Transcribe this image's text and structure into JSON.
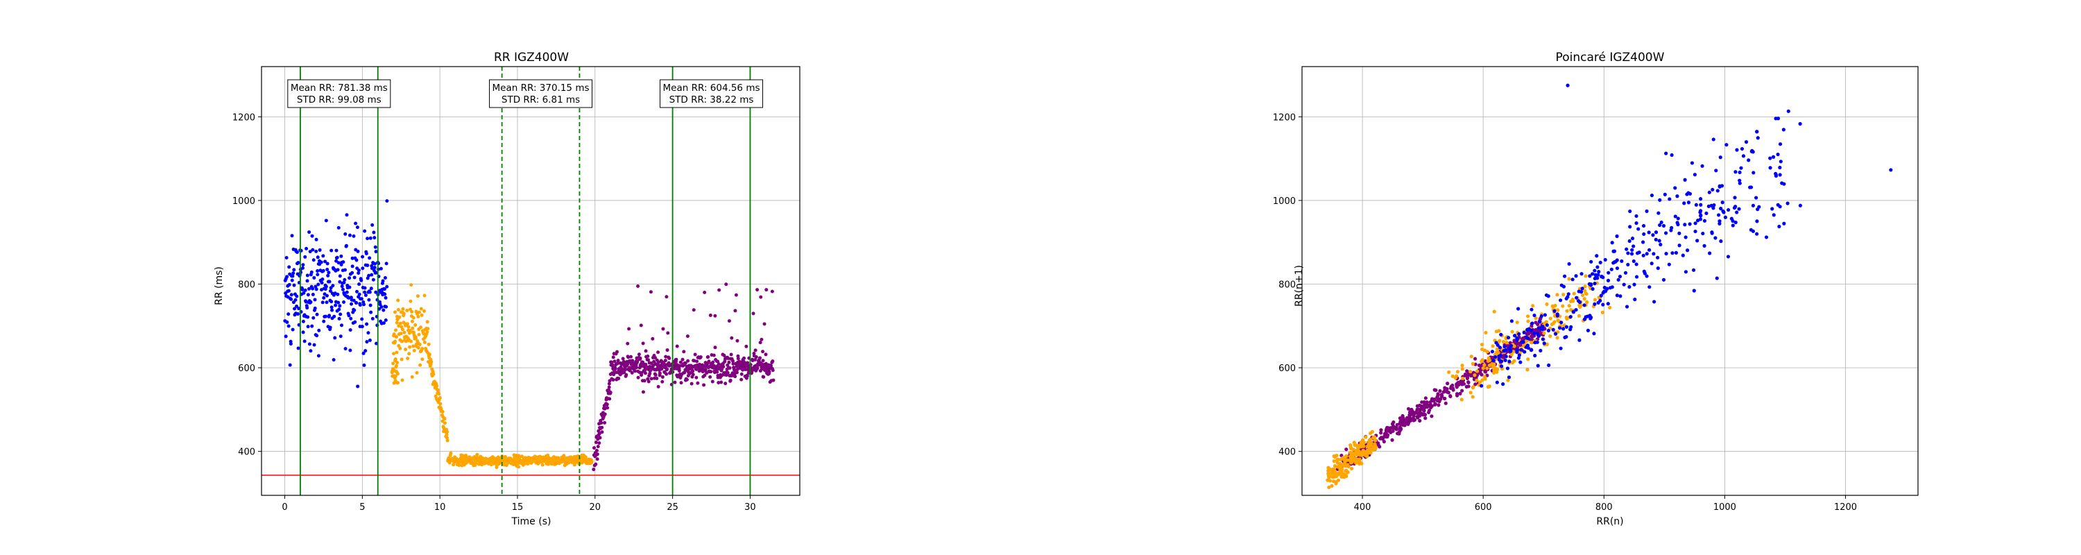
{
  "chart_data": [
    {
      "type": "scatter",
      "title": "RR IGZ400W",
      "xlabel": "Time (s)",
      "ylabel": "RR (ms)",
      "xlim": [
        -1.5,
        33.2
      ],
      "ylim": [
        295,
        1320
      ],
      "xticks": [
        0,
        5,
        10,
        15,
        20,
        25,
        30
      ],
      "yticks": [
        400,
        600,
        800,
        1000,
        1200
      ],
      "grid": true,
      "series_colors": {
        "baseline": "#0000ff",
        "transition": "#ffa500",
        "exercise": "#800080"
      },
      "segments": [
        {
          "x_start": 0.0,
          "x_end": 6.6,
          "mean": 781,
          "spread": 95,
          "color": "baseline"
        },
        {
          "x_start": 7.0,
          "x_end": 9.3,
          "mean": 680,
          "spread": 55,
          "color": "transition"
        },
        {
          "x_start": 6.9,
          "x_end": 7.3,
          "mean": 590,
          "spread": 25,
          "color": "transition"
        },
        {
          "x_start": 9.3,
          "x_end": 10.5,
          "trend": [
            620,
            430
          ],
          "spread": 15,
          "color": "transition"
        },
        {
          "x_start": 10.5,
          "x_end": 19.8,
          "mean": 378,
          "spread": 8,
          "color": "transition"
        },
        {
          "x_start": 19.9,
          "x_end": 21.0,
          "trend": [
            380,
            560
          ],
          "spread": 20,
          "color": "exercise"
        },
        {
          "x_start": 21.0,
          "x_end": 31.5,
          "mean": 600,
          "spread": 22,
          "color": "exercise"
        }
      ],
      "threshold_line": {
        "y": 343,
        "color": "#ff0000"
      },
      "vertical_lines": [
        {
          "x": 1,
          "style": "solid",
          "color": "#008000"
        },
        {
          "x": 6,
          "style": "solid",
          "color": "#008000"
        },
        {
          "x": 14,
          "style": "dashed",
          "color": "#008000"
        },
        {
          "x": 19,
          "style": "dashed",
          "color": "#008000"
        },
        {
          "x": 25,
          "style": "solid",
          "color": "#008000"
        },
        {
          "x": 30,
          "style": "solid",
          "color": "#008000"
        }
      ],
      "annotations": [
        {
          "x_center": 3.5,
          "line1": "Mean RR: 781.38 ms",
          "line2": "STD RR: 99.08 ms"
        },
        {
          "x_center": 16.5,
          "line1": "Mean RR: 370.15 ms",
          "line2": "STD RR: 6.81 ms"
        },
        {
          "x_center": 27.5,
          "line1": "Mean RR: 604.56 ms",
          "line2": "STD RR: 38.22 ms"
        }
      ]
    },
    {
      "type": "scatter",
      "title": "Poincaré IGZ400W",
      "xlabel": "RR(n)",
      "ylabel": "RR(n+1)",
      "xlim": [
        300,
        1320
      ],
      "ylim": [
        295,
        1320
      ],
      "xticks": [
        400,
        600,
        800,
        1000,
        1200
      ],
      "yticks": [
        400,
        600,
        800,
        1000,
        1200
      ],
      "grid": true,
      "clusters": [
        {
          "color": "exercise",
          "x_range": [
            365,
            700
          ],
          "spread": 10
        },
        {
          "color": "transition",
          "x_range": [
            345,
            420
          ],
          "spread": 15
        },
        {
          "color": "transition",
          "x_range": [
            560,
            790
          ],
          "spread": 30
        },
        {
          "color": "baseline",
          "x_range": [
            620,
            1100
          ],
          "spread": 70
        }
      ],
      "outliers": [
        {
          "x": 740,
          "y": 1275,
          "color": "baseline"
        },
        {
          "x": 1275,
          "y": 1073,
          "color": "baseline"
        }
      ],
      "series_colors": {
        "baseline": "#0000ff",
        "transition": "#ffa500",
        "exercise": "#800080"
      }
    }
  ]
}
